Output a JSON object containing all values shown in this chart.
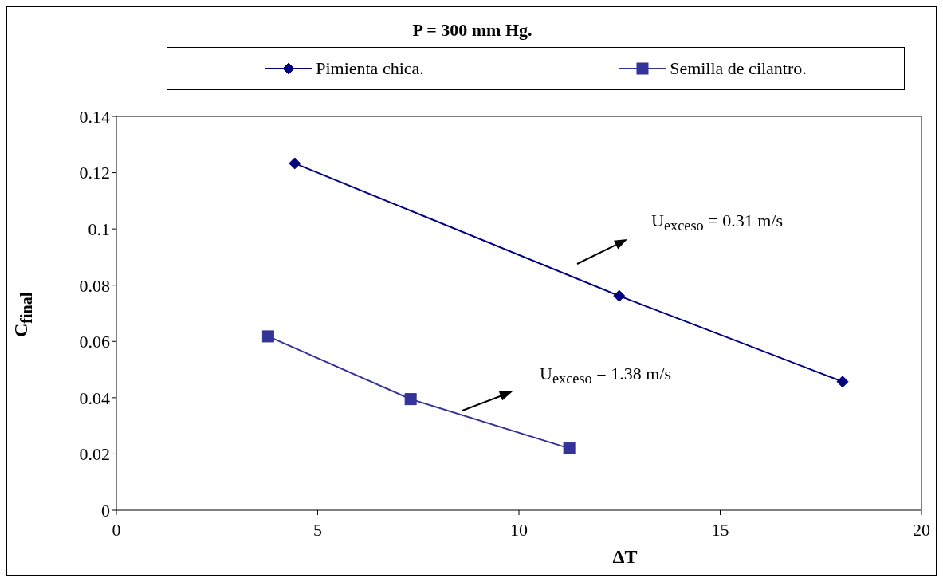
{
  "chart_data": {
    "type": "line",
    "title": "P = 300 mm Hg.",
    "xlabel": "ΔT",
    "ylabel": "C$_{final}$",
    "series": [
      {
        "name": "Pimienta chica.",
        "color": "#000080",
        "marker": "diamond",
        "x": [
          4.43,
          12.49,
          18.04
        ],
        "values": [
          0.1233,
          0.0762,
          0.0457
        ]
      },
      {
        "name": "Semilla de cilantro.",
        "color": "#333399",
        "marker": "square",
        "x": [
          3.77,
          7.31,
          11.25
        ],
        "values": [
          0.0618,
          0.0395,
          0.022
        ]
      }
    ],
    "xlim": [
      0,
      20
    ],
    "xticks": [
      0,
      5,
      10,
      15,
      20
    ],
    "ylim": [
      0,
      0.14
    ],
    "yticks": [
      0,
      0.02,
      0.04,
      0.06,
      0.08,
      0.1,
      0.12,
      0.14
    ],
    "annotations": [
      "U$_{exceso}$ = 0.31 m/s",
      "U$_{exceso}$ = 1.38 m/s"
    ],
    "grid": false,
    "legend": "top",
    "line_style": "solid"
  }
}
